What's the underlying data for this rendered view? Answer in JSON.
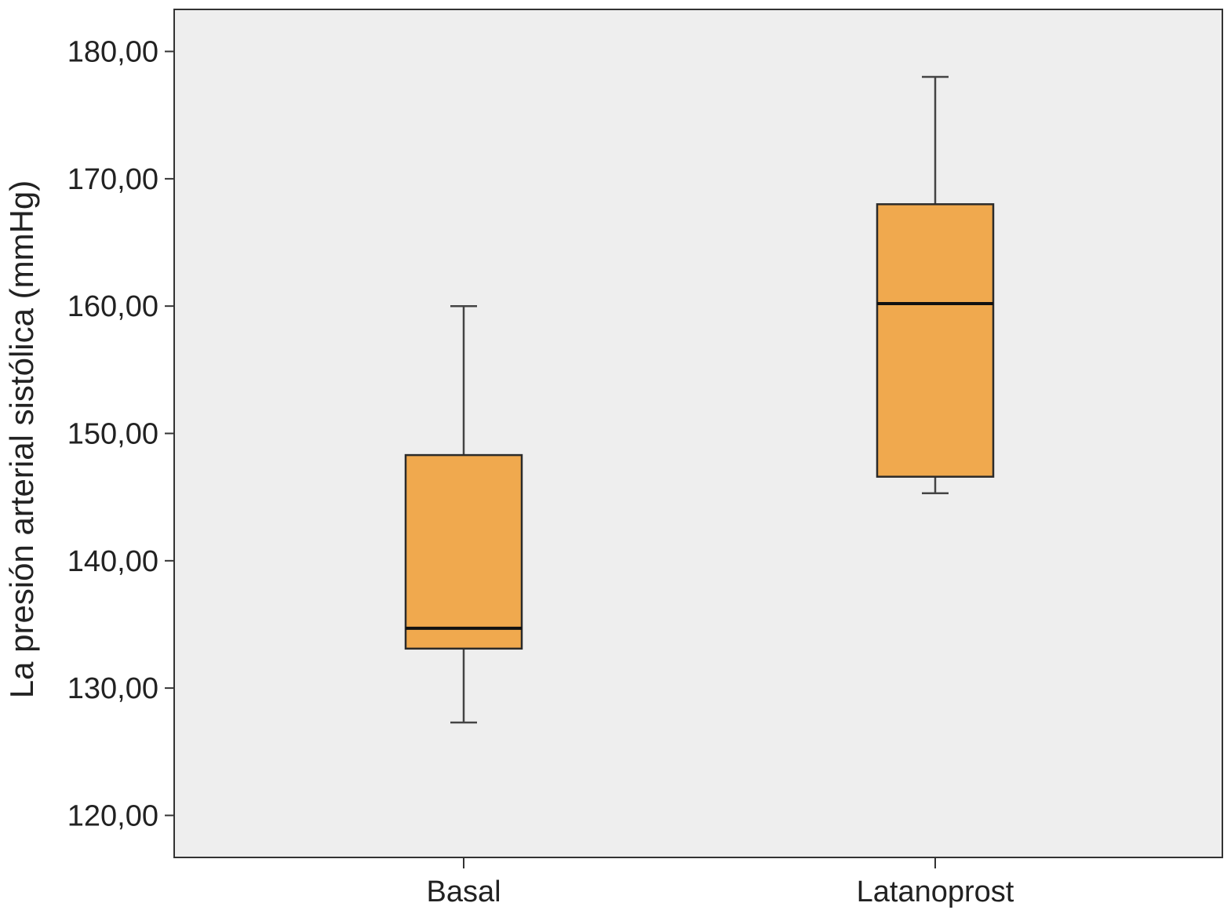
{
  "chart_data": {
    "type": "boxplot",
    "title": "",
    "xlabel": "",
    "ylabel": "La presión arterial sistólica (mmHg)",
    "ylim": [
      116.7,
      183.3
    ],
    "yticks": [
      120,
      130,
      140,
      150,
      160,
      170,
      180
    ],
    "ytick_labels": [
      "120,00",
      "130,00",
      "140,00",
      "150,00",
      "160,00",
      "170,00",
      "180,00"
    ],
    "categories": [
      "Basal",
      "Latanoprost"
    ],
    "boxes": [
      {
        "category": "Basal",
        "whisker_low": 127.3,
        "q1": 133.1,
        "median": 134.7,
        "q3": 148.3,
        "whisker_high": 160.0
      },
      {
        "category": "Latanoprost",
        "whisker_low": 145.3,
        "q1": 146.6,
        "median": 160.2,
        "q3": 168.0,
        "whisker_high": 178.0
      }
    ],
    "grid": false,
    "colors": {
      "plot_background": "#eeeeee",
      "box_fill": "#f0a94e",
      "box_stroke": "#2b2b2b",
      "median": "#111111",
      "axis": "#333333",
      "whisker": "#444444"
    }
  }
}
